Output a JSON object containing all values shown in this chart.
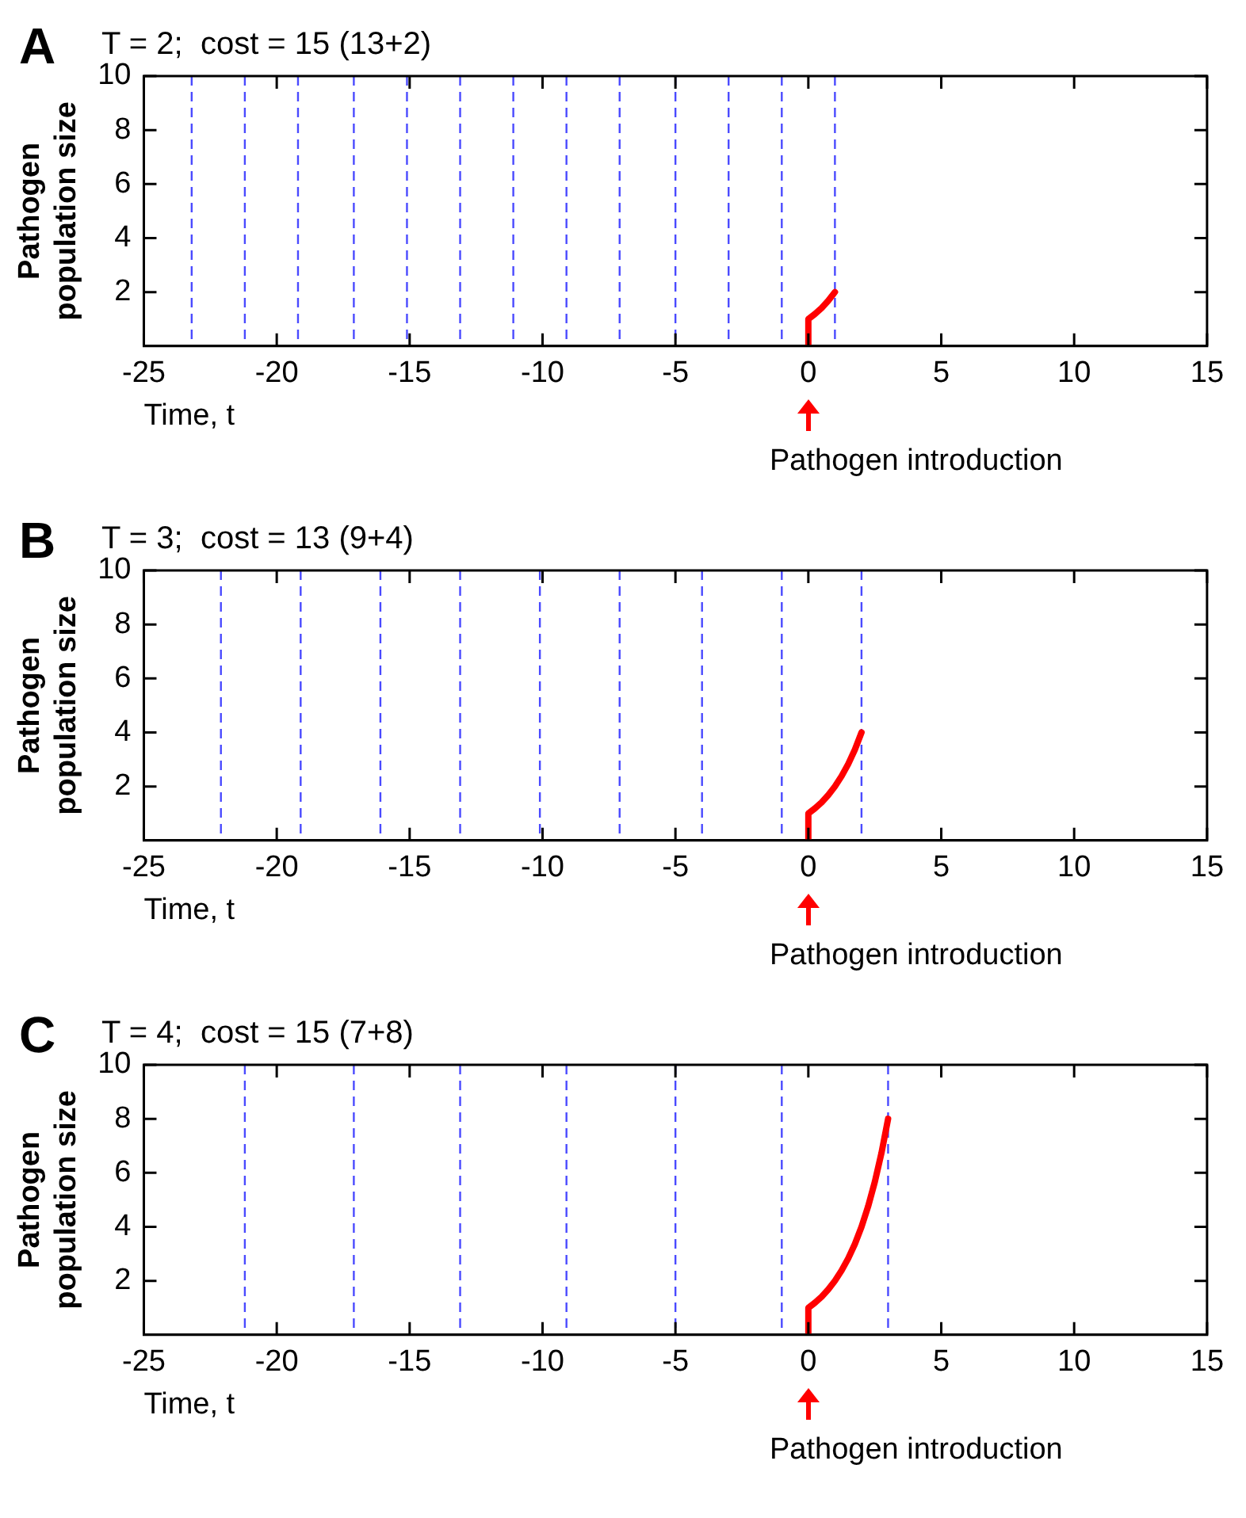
{
  "chart_data": [
    {
      "type": "line",
      "title": "T = 2;  cost = 15 (13+2)",
      "xlabel": "Time, t",
      "ylabel": "Pathogen population size",
      "xlim": [
        -25,
        15
      ],
      "xticks": [
        -25,
        -20,
        -15,
        -10,
        -5,
        0,
        5,
        10,
        15
      ],
      "ylim": [
        0,
        10
      ],
      "yticks": [
        2,
        4,
        6,
        8,
        10
      ],
      "grid": false,
      "legend": false,
      "marker": "none",
      "line_style": "solid",
      "series": [
        {
          "color": "#ff0000",
          "x": [
            0,
            0,
            0.25,
            0.5,
            0.75,
            1
          ],
          "values": [
            0,
            1,
            1.19,
            1.41,
            1.68,
            2
          ]
        }
      ],
      "ref_lines": [
        {
          "axis": "x",
          "value": -23.2,
          "color": "#4a4aff",
          "line_style": "dashed"
        },
        {
          "axis": "x",
          "value": -21.2,
          "color": "#4a4aff",
          "line_style": "dashed"
        },
        {
          "axis": "x",
          "value": -19.2,
          "color": "#4a4aff",
          "line_style": "dashed"
        },
        {
          "axis": "x",
          "value": -17.1,
          "color": "#4a4aff",
          "line_style": "dashed"
        },
        {
          "axis": "x",
          "value": -15.1,
          "color": "#4a4aff",
          "line_style": "dashed"
        },
        {
          "axis": "x",
          "value": -13.1,
          "color": "#4a4aff",
          "line_style": "dashed"
        },
        {
          "axis": "x",
          "value": -11.1,
          "color": "#4a4aff",
          "line_style": "dashed"
        },
        {
          "axis": "x",
          "value": -9.1,
          "color": "#4a4aff",
          "line_style": "dashed"
        },
        {
          "axis": "x",
          "value": -7.1,
          "color": "#4a4aff",
          "line_style": "dashed"
        },
        {
          "axis": "x",
          "value": -5,
          "color": "#4a4aff",
          "line_style": "dashed"
        },
        {
          "axis": "x",
          "value": -3,
          "color": "#4a4aff",
          "line_style": "dashed"
        },
        {
          "axis": "x",
          "value": -1,
          "color": "#4a4aff",
          "line_style": "dashed"
        },
        {
          "axis": "x",
          "value": 1,
          "color": "#4a4aff",
          "line_style": "dashed"
        }
      ],
      "annotations": [
        "A",
        "Pathogen introduction"
      ]
    },
    {
      "type": "line",
      "title": "T = 3;  cost = 13 (9+4)",
      "xlabel": "Time, t",
      "ylabel": "Pathogen population size",
      "xlim": [
        -25,
        15
      ],
      "xticks": [
        -25,
        -20,
        -15,
        -10,
        -5,
        0,
        5,
        10,
        15
      ],
      "ylim": [
        0,
        10
      ],
      "yticks": [
        2,
        4,
        6,
        8,
        10
      ],
      "grid": false,
      "legend": false,
      "marker": "none",
      "line_style": "solid",
      "series": [
        {
          "color": "#ff0000",
          "x": [
            0,
            0,
            0.25,
            0.5,
            0.75,
            1,
            1.25,
            1.5,
            1.75,
            2
          ],
          "values": [
            0,
            1,
            1.19,
            1.41,
            1.68,
            2,
            2.38,
            2.83,
            3.36,
            4
          ]
        }
      ],
      "ref_lines": [
        {
          "axis": "x",
          "value": -22.1,
          "color": "#4a4aff",
          "line_style": "dashed"
        },
        {
          "axis": "x",
          "value": -19.1,
          "color": "#4a4aff",
          "line_style": "dashed"
        },
        {
          "axis": "x",
          "value": -16.1,
          "color": "#4a4aff",
          "line_style": "dashed"
        },
        {
          "axis": "x",
          "value": -13.1,
          "color": "#4a4aff",
          "line_style": "dashed"
        },
        {
          "axis": "x",
          "value": -10.1,
          "color": "#4a4aff",
          "line_style": "dashed"
        },
        {
          "axis": "x",
          "value": -7.1,
          "color": "#4a4aff",
          "line_style": "dashed"
        },
        {
          "axis": "x",
          "value": -4,
          "color": "#4a4aff",
          "line_style": "dashed"
        },
        {
          "axis": "x",
          "value": -1,
          "color": "#4a4aff",
          "line_style": "dashed"
        },
        {
          "axis": "x",
          "value": 2,
          "color": "#4a4aff",
          "line_style": "dashed"
        }
      ],
      "annotations": [
        "B",
        "Pathogen introduction"
      ]
    },
    {
      "type": "line",
      "title": "T = 4;  cost = 15 (7+8)",
      "xlabel": "Time, t",
      "ylabel": "Pathogen population size",
      "xlim": [
        -25,
        15
      ],
      "xticks": [
        -25,
        -20,
        -15,
        -10,
        -5,
        0,
        5,
        10,
        15
      ],
      "ylim": [
        0,
        10
      ],
      "yticks": [
        2,
        4,
        6,
        8,
        10
      ],
      "grid": false,
      "legend": false,
      "marker": "none",
      "line_style": "solid",
      "series": [
        {
          "color": "#ff0000",
          "x": [
            0,
            0,
            0.25,
            0.5,
            0.75,
            1,
            1.25,
            1.5,
            1.75,
            2,
            2.25,
            2.5,
            2.75,
            3
          ],
          "values": [
            0,
            1,
            1.19,
            1.41,
            1.68,
            2,
            2.38,
            2.83,
            3.36,
            4,
            4.76,
            5.66,
            6.73,
            8
          ]
        }
      ],
      "ref_lines": [
        {
          "axis": "x",
          "value": -21.2,
          "color": "#4a4aff",
          "line_style": "dashed"
        },
        {
          "axis": "x",
          "value": -17.1,
          "color": "#4a4aff",
          "line_style": "dashed"
        },
        {
          "axis": "x",
          "value": -13.1,
          "color": "#4a4aff",
          "line_style": "dashed"
        },
        {
          "axis": "x",
          "value": -9.1,
          "color": "#4a4aff",
          "line_style": "dashed"
        },
        {
          "axis": "x",
          "value": -5,
          "color": "#4a4aff",
          "line_style": "dashed"
        },
        {
          "axis": "x",
          "value": -1,
          "color": "#4a4aff",
          "line_style": "dashed"
        },
        {
          "axis": "x",
          "value": 3,
          "color": "#4a4aff",
          "line_style": "dashed"
        }
      ],
      "annotations": [
        "C",
        "Pathogen introduction"
      ]
    }
  ]
}
